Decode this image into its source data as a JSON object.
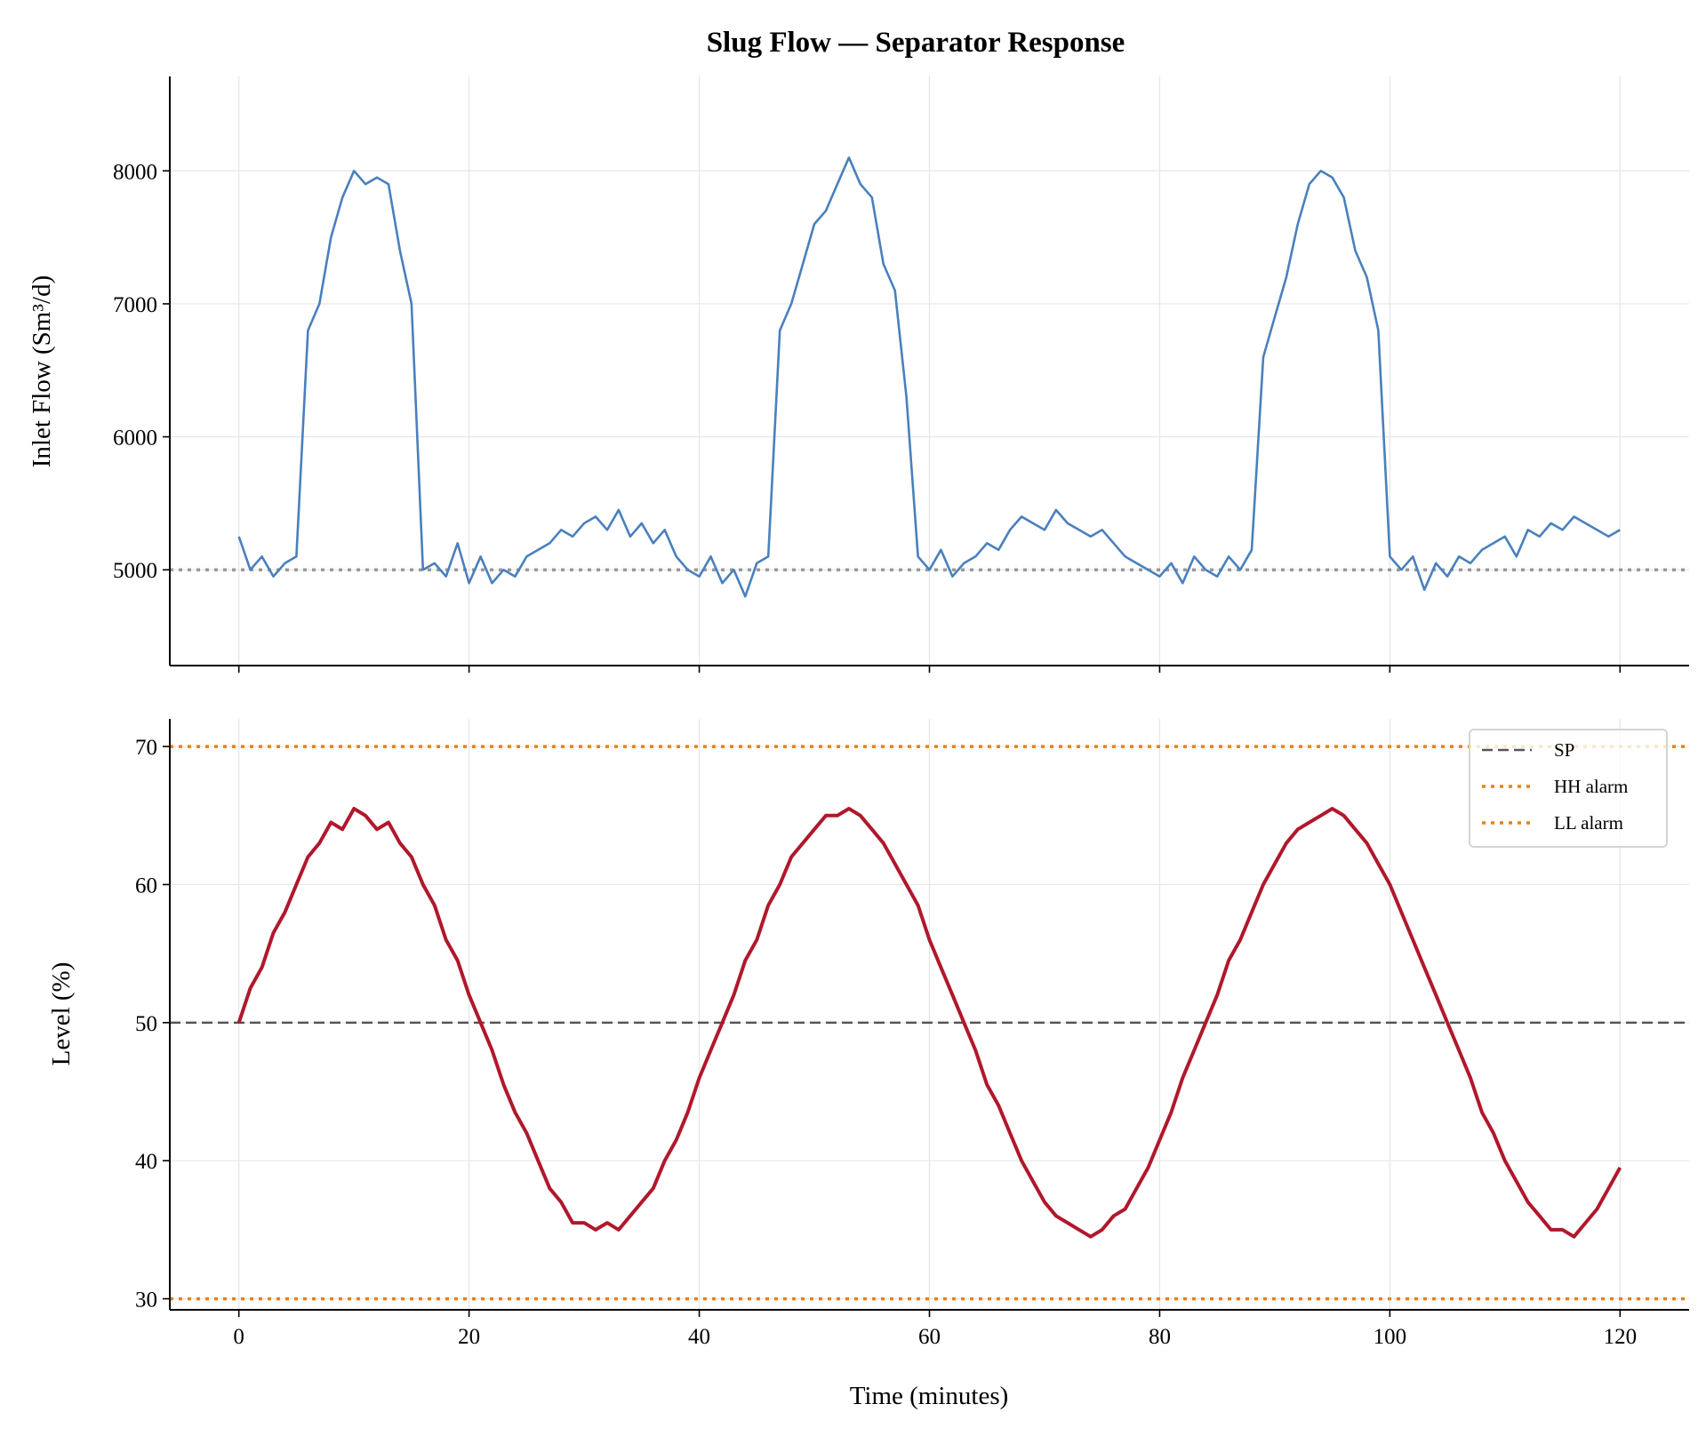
{
  "chart_data": [
    {
      "type": "line",
      "title": "Slug Flow — Separator Response",
      "xlabel": "",
      "ylabel": "Inlet Flow (Sm³/d)",
      "xlim": [
        -6,
        126
      ],
      "ylim": [
        4280,
        8710
      ],
      "xticks": [
        0,
        20,
        40,
        60,
        80,
        100,
        120
      ],
      "yticks": [
        5000,
        6000,
        7000,
        8000
      ],
      "grid": true,
      "series": [
        {
          "color": "#4a80bd",
          "x_start": 0,
          "x_step": 1,
          "values": [
            5250,
            5000,
            5100,
            4950,
            5050,
            5100,
            6800,
            7000,
            7500,
            7800,
            8000,
            7900,
            7950,
            7900,
            7400,
            7000,
            5000,
            5050,
            4950,
            5200,
            4900,
            5100,
            4900,
            5000,
            4950,
            5100,
            5150,
            5200,
            5300,
            5250,
            5350,
            5400,
            5300,
            5450,
            5250,
            5350,
            5200,
            5300,
            5100,
            5000,
            4950,
            5100,
            4900,
            5000,
            4800,
            5050,
            5100,
            6800,
            7000,
            7300,
            7600,
            7700,
            7900,
            8100,
            7900,
            7800,
            7300,
            7100,
            6300,
            5100,
            5000,
            5150,
            4950,
            5050,
            5100,
            5200,
            5150,
            5300,
            5400,
            5350,
            5300,
            5450,
            5350,
            5300,
            5250,
            5300,
            5200,
            5100,
            5050,
            5000,
            4950,
            5050,
            4900,
            5100,
            5000,
            4950,
            5100,
            5000,
            5150,
            6600,
            6900,
            7200,
            7600,
            7900,
            8000,
            7950,
            7800,
            7400,
            7200,
            6800,
            5100,
            5000,
            5100,
            4850,
            5050,
            4950,
            5100,
            5050,
            5150,
            5200,
            5250,
            5100,
            5300,
            5250,
            5350,
            5300,
            5400,
            5350,
            5300,
            5250,
            5300
          ]
        }
      ],
      "reference_lines": [
        {
          "y": 5000,
          "color": "#999999",
          "style": "dotted"
        }
      ]
    },
    {
      "type": "line",
      "xlabel": "Time (minutes)",
      "ylabel": "Level (%)",
      "xlim": [
        -6,
        126
      ],
      "ylim": [
        29.2,
        72
      ],
      "xticks": [
        0,
        20,
        40,
        60,
        80,
        100,
        120
      ],
      "yticks": [
        30,
        40,
        50,
        60,
        70
      ],
      "grid": true,
      "series": [
        {
          "color": "#b0182b",
          "x_start": 0,
          "x_step": 1,
          "values": [
            50,
            52.5,
            54,
            56.5,
            58,
            60,
            62,
            63,
            64.5,
            64,
            65.5,
            65,
            64,
            64.5,
            63,
            62,
            60,
            58.5,
            56,
            54.5,
            52,
            50,
            48,
            45.5,
            43.5,
            42,
            40,
            38,
            37,
            35.5,
            35.5,
            35,
            35.5,
            35,
            36,
            37,
            38,
            40,
            41.5,
            43.5,
            46,
            48,
            50,
            52,
            54.5,
            56,
            58.5,
            60,
            62,
            63,
            64,
            65,
            65,
            65.5,
            65,
            64,
            63,
            61.5,
            60,
            58.5,
            56,
            54,
            52,
            50,
            48,
            45.5,
            44,
            42,
            40,
            38.5,
            37,
            36,
            35.5,
            35,
            34.5,
            35,
            36,
            36.5,
            38,
            39.5,
            41.5,
            43.5,
            46,
            48,
            50,
            52,
            54.5,
            56,
            58,
            60,
            61.5,
            63,
            64,
            64.5,
            65,
            65.5,
            65,
            64,
            63,
            61.5,
            60,
            58,
            56,
            54,
            52,
            50,
            48,
            46,
            43.5,
            42,
            40,
            38.5,
            37,
            36,
            35,
            35,
            34.5,
            35.5,
            36.5,
            38,
            39.5
          ]
        }
      ],
      "reference_lines": [
        {
          "y": 50,
          "label": "SP",
          "color": "#555555",
          "style": "dashed"
        },
        {
          "y": 70,
          "label": "HH alarm",
          "color": "#e8820e",
          "style": "dotted"
        },
        {
          "y": 30,
          "label": "LL alarm",
          "color": "#e8820e",
          "style": "dotted"
        }
      ],
      "legend": {
        "placement": "upper right",
        "entries": [
          "SP",
          "HH alarm",
          "LL alarm"
        ]
      }
    }
  ]
}
